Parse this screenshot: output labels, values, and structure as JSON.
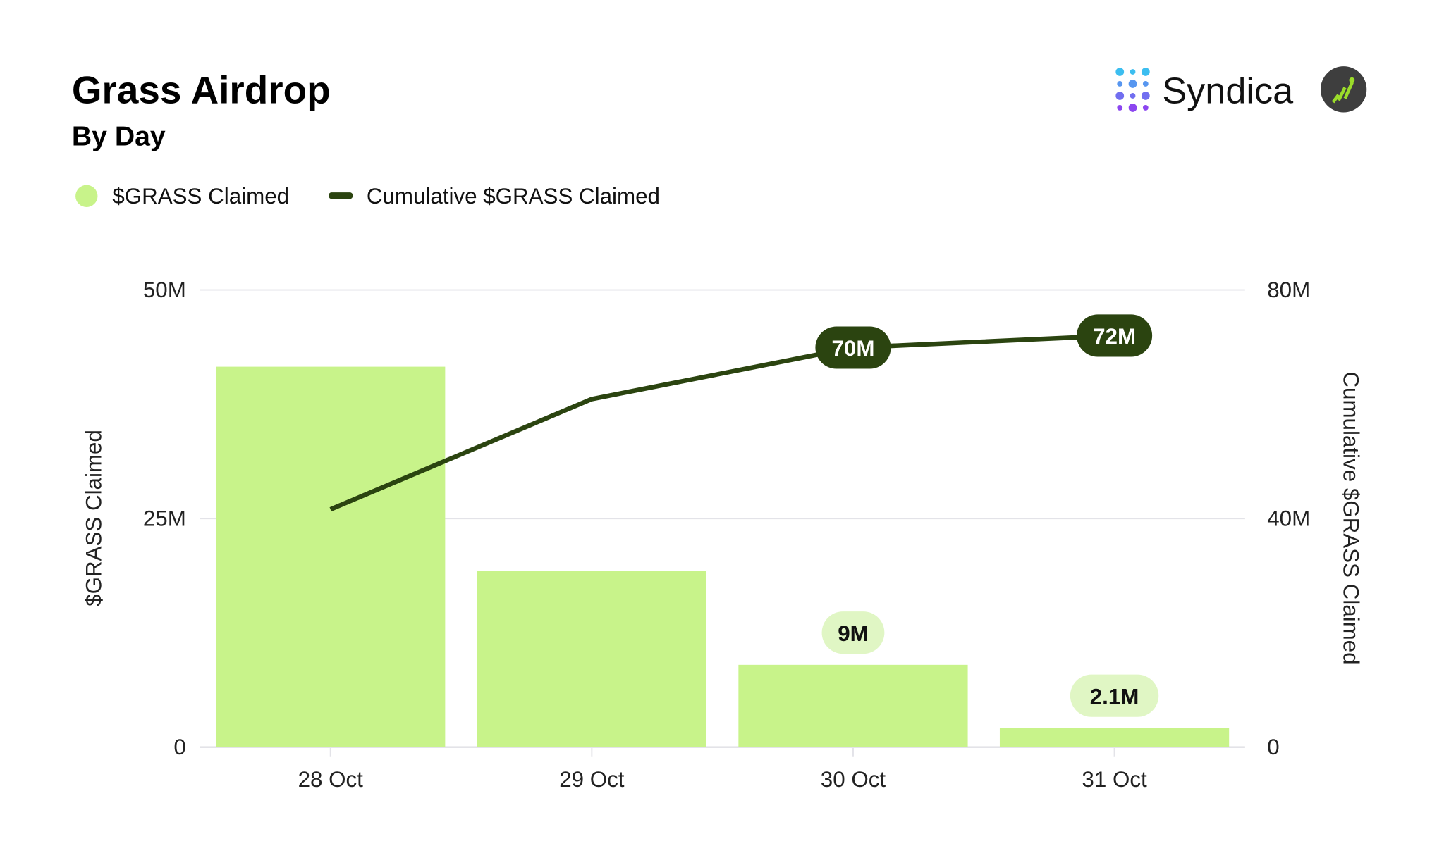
{
  "header": {
    "title": "Grass Airdrop",
    "subtitle": "By Day",
    "brand": "Syndica"
  },
  "colors": {
    "bar": "#c8f38a",
    "line": "#2b4410",
    "grid": "#e3e3e8",
    "label_light_bg": "#e0f6c4"
  },
  "chart_data": {
    "type": "bar",
    "title": "Grass Airdrop",
    "subtitle": "By Day",
    "categories": [
      "28 Oct",
      "29 Oct",
      "30 Oct",
      "31 Oct"
    ],
    "series": [
      {
        "name": "$GRASS Claimed",
        "type": "bar",
        "axis": "left",
        "values": [
          41.6,
          19.3,
          9.0,
          2.1
        ]
      },
      {
        "name": "Cumulative $GRASS Claimed",
        "type": "line",
        "axis": "right",
        "values": [
          41.6,
          60.9,
          69.9,
          72.0
        ]
      }
    ],
    "units": "M",
    "legend": [
      "$GRASS Claimed",
      "Cumulative $GRASS Claimed"
    ],
    "legend_placement": "top-left",
    "ylabel": "$GRASS Claimed",
    "y2label": "Cumulative $GRASS Claimed",
    "ylim": [
      0,
      50
    ],
    "y2lim": [
      0,
      80
    ],
    "yticks": [
      "0",
      "25M",
      "50M"
    ],
    "y2ticks": [
      "0",
      "40M",
      "80M"
    ],
    "grid": true,
    "data_labels": [
      {
        "series": "Cumulative $GRASS Claimed",
        "category": "30 Oct",
        "text": "70M"
      },
      {
        "series": "Cumulative $GRASS Claimed",
        "category": "31 Oct",
        "text": "72M"
      },
      {
        "series": "$GRASS Claimed",
        "category": "30 Oct",
        "text": "9M"
      },
      {
        "series": "$GRASS Claimed",
        "category": "31 Oct",
        "text": "2.1M"
      }
    ]
  }
}
